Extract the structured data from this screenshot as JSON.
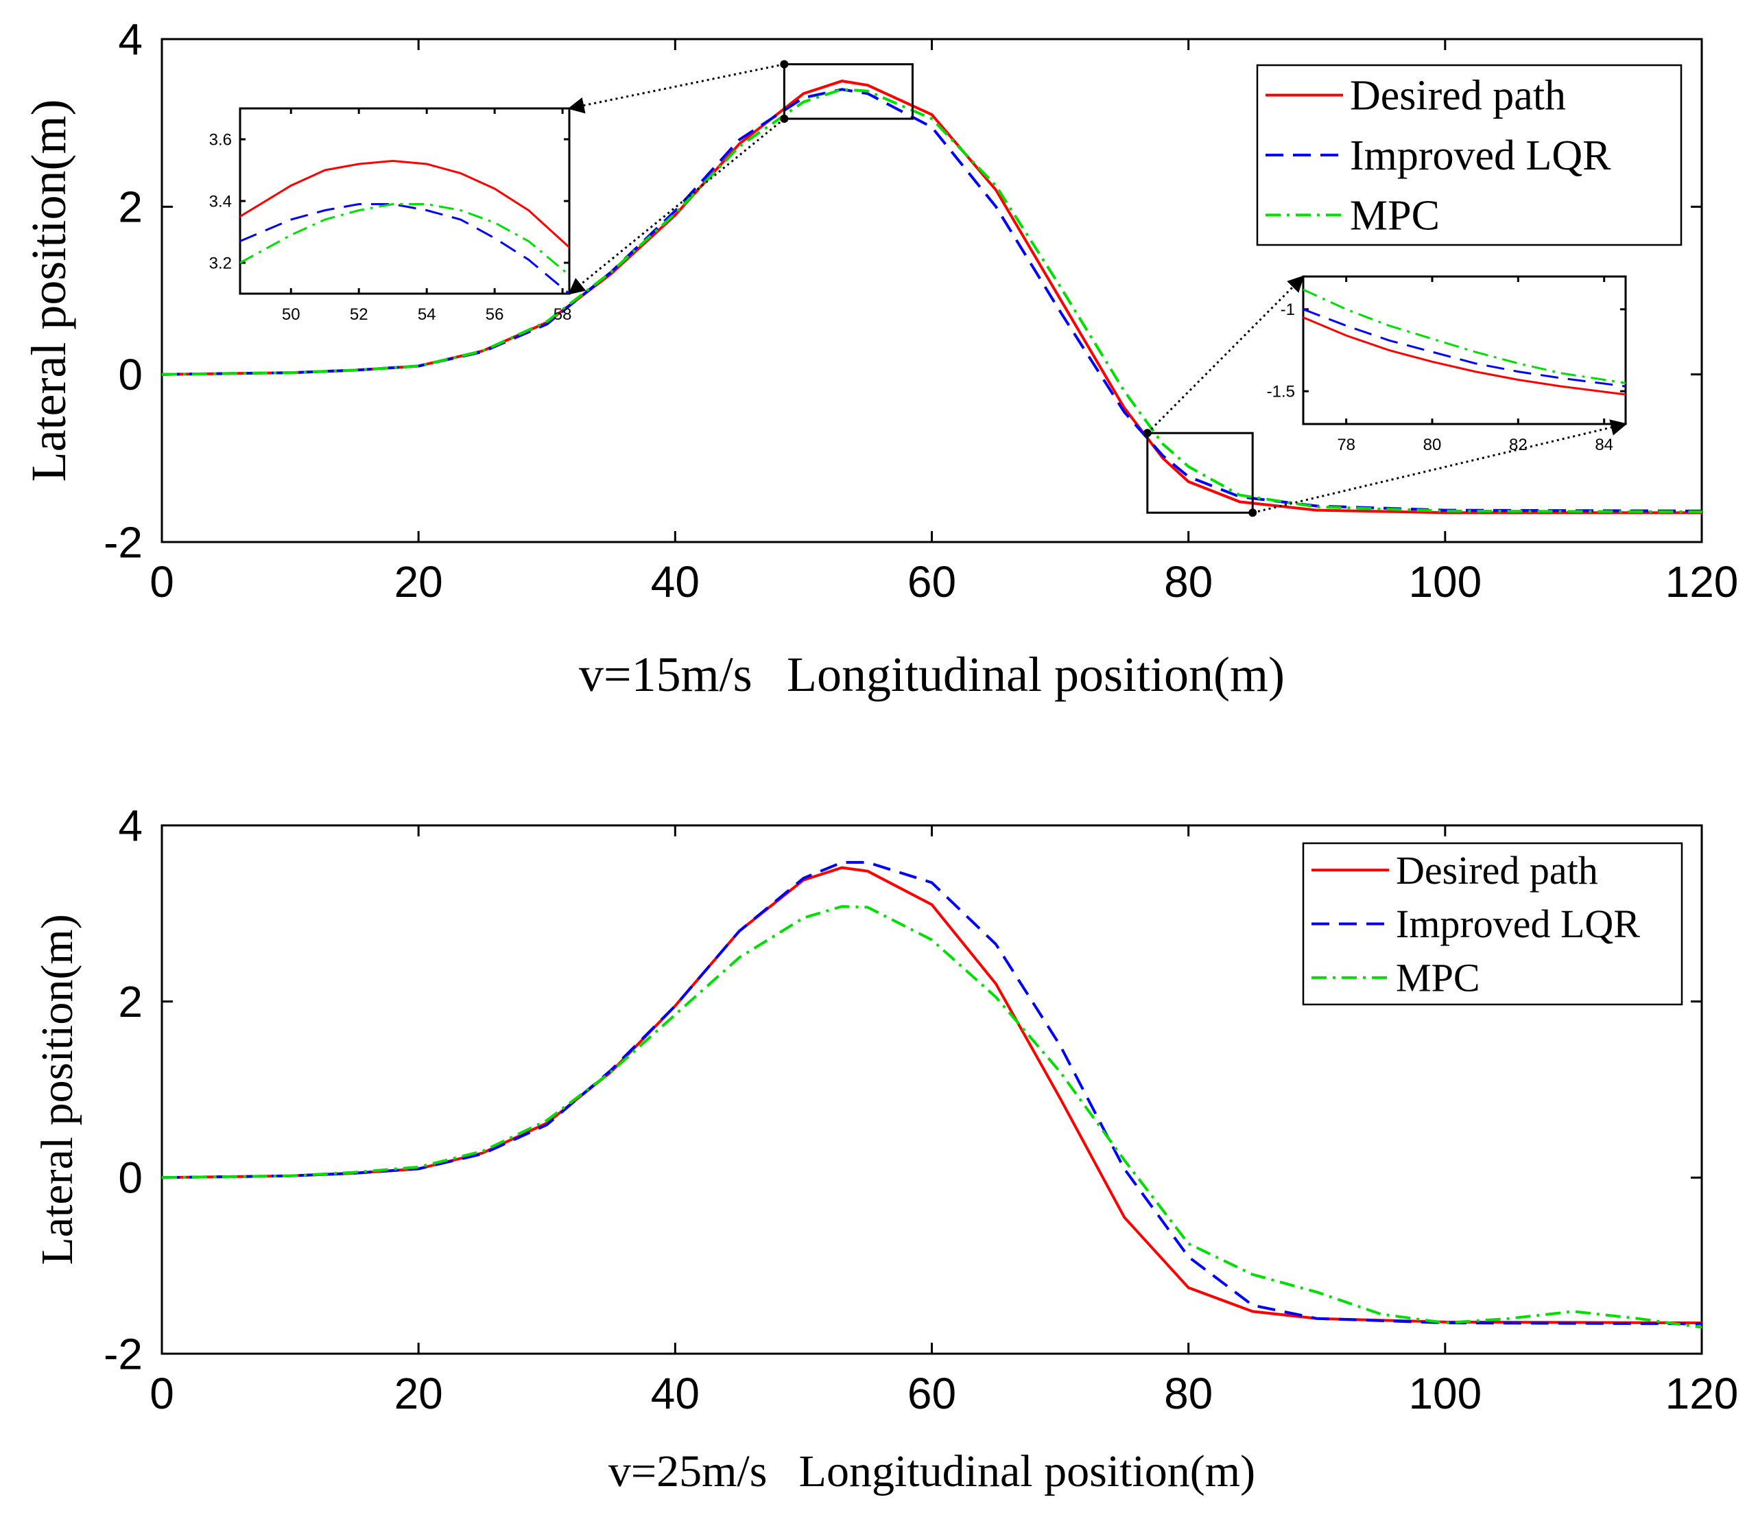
{
  "colors": {
    "desired": "#ff0000",
    "lqr": "#0000ff",
    "mpc": "#00e000"
  },
  "chart_data": [
    {
      "type": "line",
      "id": "top",
      "xlabel_prefix": "v=15m/s",
      "xlabel": "Longitudinal position(m)",
      "ylabel": "Lateral position(m)",
      "xlim": [
        0,
        120
      ],
      "ylim": [
        -2,
        4
      ],
      "xticks": [
        "0",
        "20",
        "40",
        "60",
        "80",
        "100",
        "120"
      ],
      "yticks": [
        "-2",
        "0",
        "2",
        "4"
      ],
      "legend": [
        "Desired path",
        "Improved LQR",
        "MPC"
      ],
      "legend_position": "top-right",
      "series": [
        {
          "name": "Desired path",
          "x": [
            0,
            10,
            15,
            20,
            25,
            30,
            35,
            40,
            45,
            50,
            53,
            55,
            60,
            65,
            70,
            75,
            78,
            80,
            84,
            90,
            100,
            120
          ],
          "y": [
            0,
            0.02,
            0.05,
            0.1,
            0.28,
            0.62,
            1.2,
            1.9,
            2.75,
            3.35,
            3.5,
            3.45,
            3.1,
            2.2,
            0.9,
            -0.4,
            -1.0,
            -1.28,
            -1.52,
            -1.62,
            -1.65,
            -1.65
          ]
        },
        {
          "name": "Improved LQR",
          "x": [
            0,
            10,
            15,
            20,
            25,
            30,
            35,
            40,
            45,
            50,
            53,
            55,
            60,
            65,
            70,
            75,
            78,
            80,
            84,
            90,
            100,
            120
          ],
          "y": [
            0,
            0.02,
            0.05,
            0.1,
            0.27,
            0.6,
            1.22,
            1.95,
            2.8,
            3.3,
            3.4,
            3.35,
            2.95,
            2.0,
            0.75,
            -0.45,
            -0.97,
            -1.22,
            -1.46,
            -1.57,
            -1.62,
            -1.63
          ]
        },
        {
          "name": "MPC",
          "x": [
            0,
            10,
            15,
            20,
            25,
            30,
            35,
            40,
            45,
            50,
            53,
            55,
            60,
            65,
            70,
            75,
            78,
            80,
            84,
            90,
            100,
            120
          ],
          "y": [
            0,
            0.02,
            0.05,
            0.1,
            0.28,
            0.63,
            1.22,
            1.92,
            2.72,
            3.25,
            3.4,
            3.38,
            3.05,
            2.25,
            1.05,
            -0.2,
            -0.83,
            -1.1,
            -1.44,
            -1.58,
            -1.63,
            -1.64
          ]
        }
      ],
      "insets": [
        {
          "id": "peak",
          "xlim": [
            48.5,
            58.2
          ],
          "ylim": [
            3.1,
            3.7
          ],
          "xticks": [
            "50",
            "52",
            "54",
            "56",
            "58"
          ],
          "yticks": [
            "3.2",
            "3.4",
            "3.6"
          ],
          "series": [
            {
              "name": "Desired path",
              "x": [
                48.5,
                50,
                51,
                52,
                53,
                54,
                55,
                56,
                57,
                58.2
              ],
              "y": [
                3.35,
                3.45,
                3.5,
                3.52,
                3.53,
                3.52,
                3.49,
                3.44,
                3.37,
                3.25
              ]
            },
            {
              "name": "Improved LQR",
              "x": [
                48.5,
                50,
                51,
                52,
                53,
                54,
                55,
                56,
                57,
                58.2
              ],
              "y": [
                3.27,
                3.34,
                3.37,
                3.39,
                3.39,
                3.37,
                3.34,
                3.28,
                3.21,
                3.1
              ]
            },
            {
              "name": "MPC",
              "x": [
                48.5,
                50,
                51,
                52,
                53,
                54,
                55,
                56,
                57,
                58.2
              ],
              "y": [
                3.2,
                3.29,
                3.34,
                3.37,
                3.39,
                3.39,
                3.37,
                3.33,
                3.27,
                3.16
              ]
            }
          ]
        },
        {
          "id": "tail",
          "xlim": [
            77,
            84.5
          ],
          "ylim": [
            -1.7,
            -0.8
          ],
          "xticks": [
            "78",
            "80",
            "82",
            "84"
          ],
          "yticks": [
            "-1",
            "-1.5"
          ],
          "series": [
            {
              "name": "Desired path",
              "x": [
                77,
                78,
                79,
                80,
                81,
                82,
                83,
                84.5
              ],
              "y": [
                -1.05,
                -1.16,
                -1.25,
                -1.32,
                -1.38,
                -1.43,
                -1.47,
                -1.52
              ]
            },
            {
              "name": "Improved LQR",
              "x": [
                77,
                78,
                79,
                80,
                81,
                82,
                83,
                84.5
              ],
              "y": [
                -1.0,
                -1.1,
                -1.19,
                -1.26,
                -1.33,
                -1.38,
                -1.42,
                -1.47
              ]
            },
            {
              "name": "MPC",
              "x": [
                77,
                78,
                79,
                80,
                81,
                82,
                83,
                84.5
              ],
              "y": [
                -0.88,
                -1.0,
                -1.1,
                -1.18,
                -1.26,
                -1.33,
                -1.39,
                -1.45
              ]
            }
          ]
        }
      ]
    },
    {
      "type": "line",
      "id": "bottom",
      "xlabel_prefix": "v=25m/s",
      "xlabel": "Longitudinal position(m)",
      "ylabel": "Lateral position(m)",
      "xlim": [
        0,
        120
      ],
      "ylim": [
        -2,
        4
      ],
      "xticks": [
        "0",
        "20",
        "40",
        "60",
        "80",
        "100",
        "120"
      ],
      "yticks": [
        "-2",
        "0",
        "2",
        "4"
      ],
      "legend": [
        "Desired path",
        "Improved LQR",
        "MPC"
      ],
      "legend_position": "top-right",
      "series": [
        {
          "name": "Desired path",
          "x": [
            0,
            10,
            15,
            20,
            25,
            30,
            35,
            40,
            45,
            50,
            53,
            55,
            60,
            65,
            70,
            75,
            80,
            85,
            90,
            100,
            120
          ],
          "y": [
            0,
            0.02,
            0.05,
            0.1,
            0.28,
            0.62,
            1.2,
            1.95,
            2.8,
            3.38,
            3.52,
            3.48,
            3.1,
            2.2,
            0.9,
            -0.45,
            -1.25,
            -1.52,
            -1.6,
            -1.64,
            -1.65
          ]
        },
        {
          "name": "Improved LQR",
          "x": [
            0,
            10,
            15,
            20,
            25,
            30,
            35,
            40,
            45,
            50,
            53,
            55,
            60,
            65,
            70,
            75,
            80,
            85,
            90,
            100,
            120
          ],
          "y": [
            0,
            0.02,
            0.05,
            0.1,
            0.27,
            0.6,
            1.22,
            1.95,
            2.8,
            3.4,
            3.58,
            3.58,
            3.35,
            2.65,
            1.5,
            0.1,
            -0.9,
            -1.45,
            -1.6,
            -1.65,
            -1.66
          ]
        },
        {
          "name": "MPC",
          "x": [
            0,
            10,
            15,
            20,
            25,
            30,
            35,
            40,
            45,
            50,
            53,
            55,
            60,
            65,
            70,
            75,
            80,
            85,
            90,
            95,
            100,
            105,
            110,
            115,
            120
          ],
          "y": [
            0,
            0.02,
            0.06,
            0.12,
            0.3,
            0.65,
            1.2,
            1.85,
            2.5,
            2.95,
            3.08,
            3.07,
            2.7,
            2.05,
            1.2,
            0.2,
            -0.75,
            -1.1,
            -1.3,
            -1.55,
            -1.65,
            -1.6,
            -1.52,
            -1.6,
            -1.7
          ]
        }
      ]
    }
  ]
}
